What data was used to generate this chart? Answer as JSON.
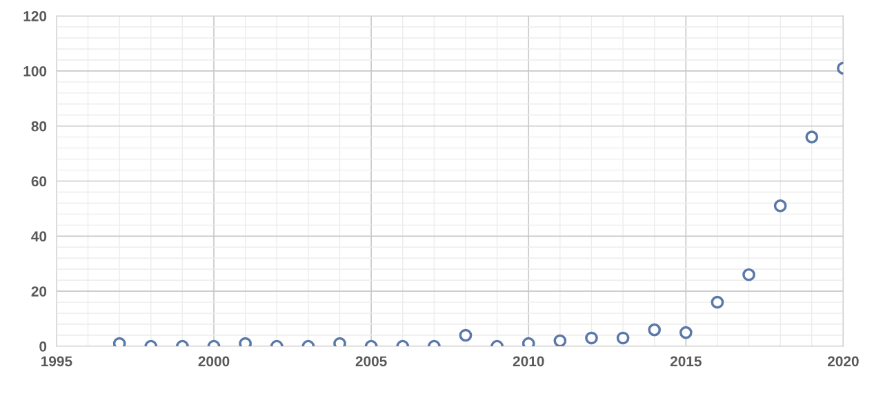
{
  "chart_data": {
    "type": "scatter",
    "x": [
      1997,
      1998,
      1999,
      2000,
      2001,
      2002,
      2003,
      2004,
      2005,
      2006,
      2007,
      2008,
      2009,
      2010,
      2011,
      2012,
      2013,
      2014,
      2015,
      2016,
      2017,
      2018,
      2019,
      2020
    ],
    "series": [
      {
        "color": "#5a78a8",
        "values": [
          1,
          0,
          0,
          0,
          1,
          0,
          0,
          1,
          0,
          0,
          0,
          4,
          0,
          1,
          2,
          3,
          3,
          6,
          5,
          16,
          26,
          51,
          76,
          101
        ]
      }
    ],
    "xlim": [
      1995,
      2020
    ],
    "xticks": [
      1995,
      2000,
      2005,
      2010,
      2015,
      2020
    ],
    "ylim": [
      0,
      120
    ],
    "yticks": [
      0,
      20,
      40,
      60,
      80,
      100,
      120
    ],
    "grid": true,
    "marker": "circle"
  }
}
